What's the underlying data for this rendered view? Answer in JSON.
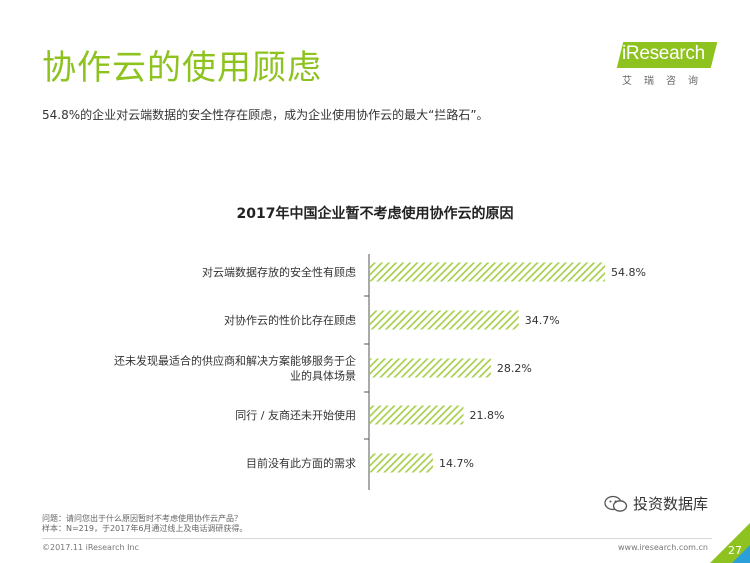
{
  "page": {
    "title": "协作云的使用顾虑",
    "subtitle": "54.8%的企业对云端数据的安全性存在顾虑，成为企业使用协作云的最大“拦路石”。",
    "logo_text": "iResearch",
    "logo_sub": "艾瑞咨询",
    "notes_line1": "问题：请问您出于什么原因暂时不考虑使用协作云产品？",
    "notes_line2": "样本：N=219，于2017年6月通过线上及电话调研获得。",
    "copyright": "©2017.11 iResearch Inc",
    "website": "www.iresearch.com.cn",
    "page_number": "27",
    "watermark": "投资数据库",
    "accent_color": "#8dc21f"
  },
  "chart_data": {
    "type": "bar",
    "orientation": "horizontal",
    "title": "2017年中国企业暂不考虑使用协作云的原因",
    "categories": [
      "对云端数据存放的安全性有顾虑",
      "对协作云的性价比存在顾虑",
      "还未发现最适合的供应商和解决方案能够服务于企业的具体场景",
      "同行 / 友商还未开始使用",
      "目前没有此方面的需求"
    ],
    "category_lines": [
      [
        "对云端数据存放的安全性有顾虑"
      ],
      [
        "对协作云的性价比存在顾虑"
      ],
      [
        "还未发现最适合的供应商和解决方案能够服务于企",
        "业的具体场景"
      ],
      [
        "同行 / 友商还未开始使用"
      ],
      [
        "目前没有此方面的需求"
      ]
    ],
    "values": [
      54.8,
      34.7,
      28.2,
      21.8,
      14.7
    ],
    "value_labels": [
      "54.8%",
      "34.7%",
      "28.2%",
      "21.8%",
      "14.7%"
    ],
    "unit": "%",
    "xlim": [
      0,
      60
    ],
    "bar_color": "#b5d86a",
    "pattern": "diagonal-hatch",
    "grid": false
  }
}
